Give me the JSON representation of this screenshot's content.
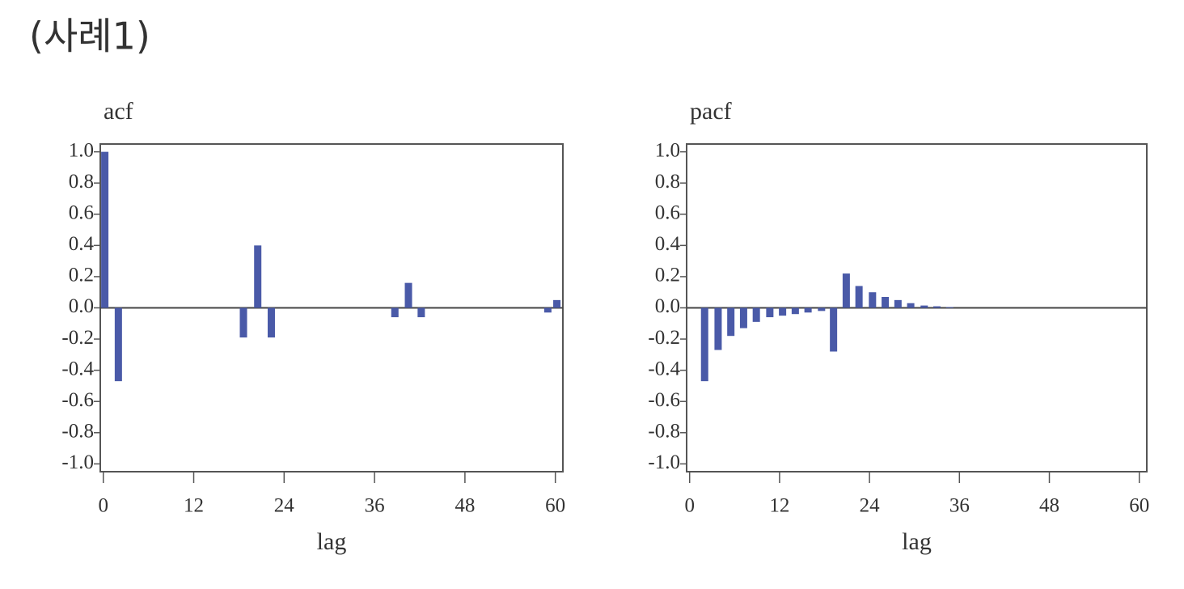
{
  "page_title": "(사례1)",
  "chart_data": [
    {
      "type": "bar",
      "title": "acf",
      "x_label": "lag",
      "color": "#4a5aa8",
      "x": [
        0.2,
        2,
        18.6,
        20.5,
        22.3,
        38.7,
        40.5,
        42.2,
        59,
        60.2
      ],
      "values": [
        1.0,
        -0.47,
        -0.19,
        0.4,
        -0.19,
        -0.06,
        0.16,
        -0.06,
        -0.03,
        0.05
      ],
      "xlim": [
        -0.4,
        61
      ],
      "xticks": [
        0,
        12,
        24,
        36,
        48,
        60
      ],
      "ylim": [
        -1.05,
        1.05
      ],
      "yticks": [
        {
          "value": 1.0,
          "label": "1.0"
        },
        {
          "value": 0.8,
          "label": "0.8"
        },
        {
          "value": 0.6,
          "label": "0.6"
        },
        {
          "value": 0.4,
          "label": "0.4"
        },
        {
          "value": 0.2,
          "label": "0.2"
        },
        {
          "value": 0,
          "label": "0.0"
        },
        {
          "value": -0.2,
          "label": "-0.2"
        },
        {
          "value": -0.4,
          "label": "-0.4"
        },
        {
          "value": -0.6,
          "label": "-0.6"
        },
        {
          "value": -0.8,
          "label": "-0.8"
        },
        {
          "value": -1.0,
          "label": "-1.0"
        }
      ]
    },
    {
      "type": "bar",
      "title": "pacf",
      "x_label": "lag",
      "color": "#4a5aa8",
      "x": [
        2.0,
        3.8,
        5.5,
        7.2,
        8.9,
        10.7,
        12.4,
        14.1,
        15.8,
        17.6,
        19.2,
        20.9,
        22.6,
        24.4,
        26.1,
        27.8,
        29.5,
        31.3,
        33.0,
        34.7
      ],
      "values": [
        -0.47,
        -0.27,
        -0.18,
        -0.13,
        -0.09,
        -0.06,
        -0.05,
        -0.04,
        -0.03,
        -0.02,
        -0.28,
        0.22,
        0.14,
        0.1,
        0.07,
        0.05,
        0.03,
        0.015,
        0.01,
        0.005
      ],
      "xlim": [
        -0.4,
        61
      ],
      "xticks": [
        0,
        12,
        24,
        36,
        48,
        60
      ],
      "ylim": [
        -1.05,
        1.05
      ],
      "yticks": [
        {
          "value": 1.0,
          "label": "1.0"
        },
        {
          "value": 0.8,
          "label": "0.8"
        },
        {
          "value": 0.6,
          "label": "0.6"
        },
        {
          "value": 0.4,
          "label": "0.4"
        },
        {
          "value": 0.2,
          "label": "0.2"
        },
        {
          "value": 0,
          "label": "0.0"
        },
        {
          "value": -0.2,
          "label": "-0.2"
        },
        {
          "value": -0.4,
          "label": "-0.4"
        },
        {
          "value": -0.6,
          "label": "-0.6"
        },
        {
          "value": -0.8,
          "label": "-0.8"
        },
        {
          "value": -1.0,
          "label": "-1.0"
        }
      ]
    }
  ]
}
